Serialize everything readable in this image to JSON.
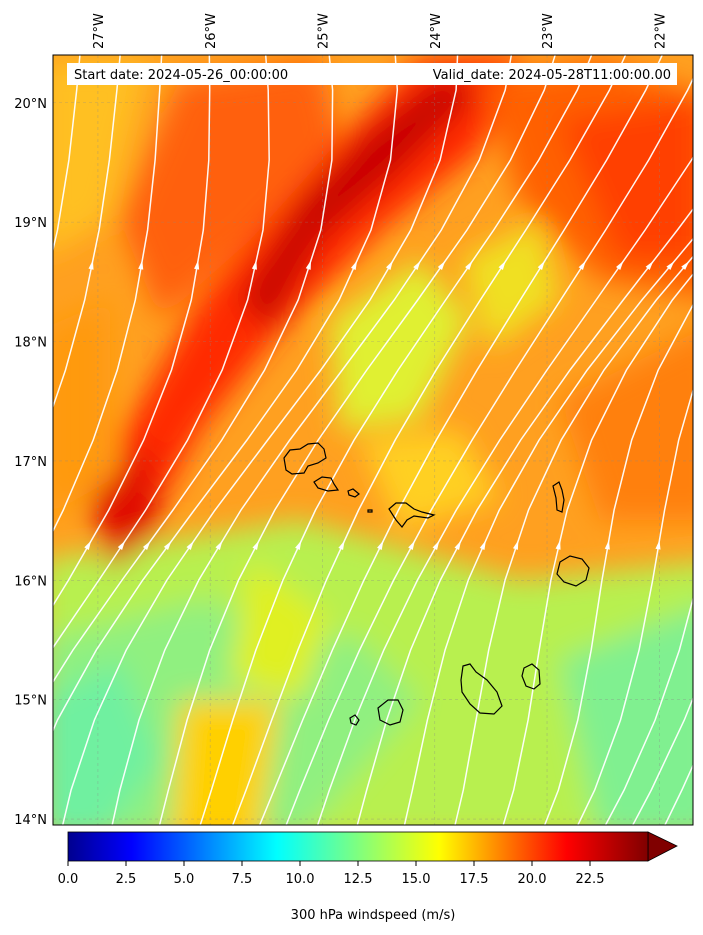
{
  "map": {
    "start_date_label": "Start date: 2024-05-26_00:00:00",
    "valid_date_label": "Valid_date: 2024-05-28T11:00:00.00",
    "lon_ticks": [
      {
        "value": -27,
        "label": "27°W"
      },
      {
        "value": -26,
        "label": "26°W"
      },
      {
        "value": -25,
        "label": "25°W"
      },
      {
        "value": -24,
        "label": "24°W"
      },
      {
        "value": -23,
        "label": "23°W"
      },
      {
        "value": -22,
        "label": "22°W"
      }
    ],
    "lat_ticks": [
      {
        "value": 20,
        "label": "20°N"
      },
      {
        "value": 19,
        "label": "19°N"
      },
      {
        "value": 18,
        "label": "18°N"
      },
      {
        "value": 17,
        "label": "17°N"
      },
      {
        "value": 16,
        "label": "16°N"
      },
      {
        "value": 15,
        "label": "15°N"
      },
      {
        "value": 14,
        "label": "14°N"
      }
    ],
    "lon_range": [
      -27.4,
      -21.7
    ],
    "lat_range": [
      13.95,
      20.4
    ],
    "gridlines": true,
    "streamline_color": "#ffffff",
    "coastline_color": "#000000"
  },
  "colorbar": {
    "title": "300 hPa windspeed (m/s)",
    "range": [
      0,
      25
    ],
    "extend": "max",
    "colormap": "jet",
    "ticks": [
      {
        "value": 0,
        "label": "0.0"
      },
      {
        "value": 2.5,
        "label": "2.5"
      },
      {
        "value": 5,
        "label": "5.0"
      },
      {
        "value": 7.5,
        "label": "7.5"
      },
      {
        "value": 10,
        "label": "10.0"
      },
      {
        "value": 12.5,
        "label": "12.5"
      },
      {
        "value": 15,
        "label": "15.0"
      },
      {
        "value": 17.5,
        "label": "17.5"
      },
      {
        "value": 20,
        "label": "20.0"
      },
      {
        "value": 22.5,
        "label": "22.5"
      }
    ]
  }
}
